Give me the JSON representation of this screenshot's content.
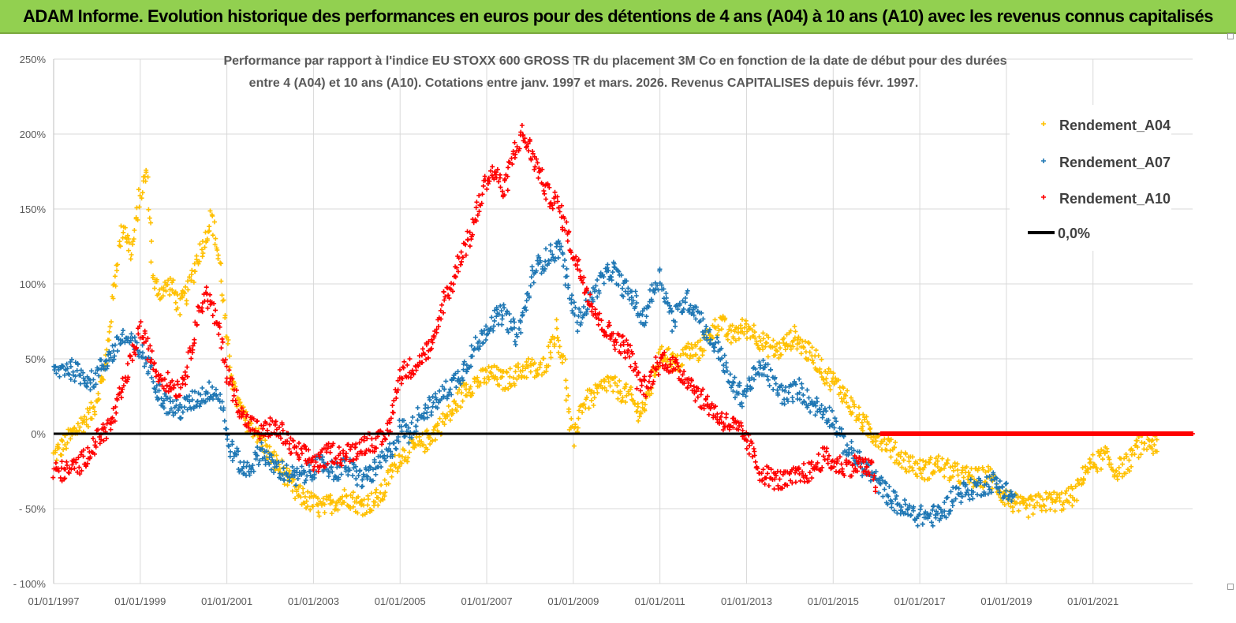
{
  "header": {
    "title": "ADAM Informe. Evolution historique des performances en euros pour des détentions de 4 ans (A04) à 10 ans (A10) avec les revenus connus capitalisés"
  },
  "chart_data": {
    "type": "scatter",
    "title_line1": "Performance par rapport à l'indice EU STOXX 600 GROSS TR  du placement 3M Co en fonction de la date de début pour des durées",
    "title_line2": "entre 4 (A04) et 10 ans (A10). Cotations entre janv. 1997 et mars. 2026. Revenus CAPITALISES depuis févr. 1997.",
    "xlabel": "",
    "ylabel": "",
    "xlim": [
      1997.0,
      2023.3
    ],
    "ylim": [
      -100,
      250
    ],
    "y_ticks": [
      -100,
      -50,
      0,
      50,
      100,
      150,
      200,
      250
    ],
    "y_tick_labels": [
      "- 100%",
      "- 50%",
      "0%",
      "50%",
      "100%",
      "150%",
      "200%",
      "250%"
    ],
    "x_ticks": [
      1997,
      1999,
      2001,
      2003,
      2005,
      2007,
      2009,
      2011,
      2013,
      2015,
      2017,
      2019,
      2021
    ],
    "x_tick_labels": [
      "01/01/1997",
      "01/01/1999",
      "01/01/2001",
      "01/01/2003",
      "01/01/2005",
      "01/01/2007",
      "01/01/2009",
      "01/01/2011",
      "01/01/2013",
      "01/01/2015",
      "01/01/2017",
      "01/01/2019",
      "01/01/2021"
    ],
    "grid": true,
    "legend_position": "top-right",
    "series": [
      {
        "name": "Rendement_A04",
        "color": "#ffc000",
        "marker": "plus",
        "points": [
          [
            1997.0,
            -15
          ],
          [
            1997.3,
            -5
          ],
          [
            1997.6,
            5
          ],
          [
            1997.9,
            15
          ],
          [
            1998.2,
            45
          ],
          [
            1998.4,
            100
          ],
          [
            1998.6,
            140
          ],
          [
            1998.8,
            120
          ],
          [
            1999.0,
            160
          ],
          [
            1999.15,
            175
          ],
          [
            1999.3,
            100
          ],
          [
            1999.5,
            95
          ],
          [
            1999.7,
            100
          ],
          [
            1999.9,
            85
          ],
          [
            2000.1,
            95
          ],
          [
            2000.3,
            115
          ],
          [
            2000.5,
            130
          ],
          [
            2000.65,
            145
          ],
          [
            2000.85,
            110
          ],
          [
            2001.0,
            60
          ],
          [
            2001.2,
            25
          ],
          [
            2001.4,
            10
          ],
          [
            2001.6,
            5
          ],
          [
            2001.8,
            -5
          ],
          [
            2002.0,
            -15
          ],
          [
            2002.3,
            -25
          ],
          [
            2002.6,
            -40
          ],
          [
            2002.9,
            -45
          ],
          [
            2003.2,
            -50
          ],
          [
            2003.5,
            -45
          ],
          [
            2003.8,
            -42
          ],
          [
            2004.1,
            -48
          ],
          [
            2004.4,
            -45
          ],
          [
            2004.6,
            -40
          ],
          [
            2004.8,
            -25
          ],
          [
            2005.0,
            -15
          ],
          [
            2005.3,
            -10
          ],
          [
            2005.6,
            -5
          ],
          [
            2005.9,
            5
          ],
          [
            2006.2,
            15
          ],
          [
            2006.5,
            30
          ],
          [
            2006.8,
            35
          ],
          [
            2007.1,
            40
          ],
          [
            2007.4,
            35
          ],
          [
            2007.7,
            40
          ],
          [
            2008.0,
            45
          ],
          [
            2008.2,
            40
          ],
          [
            2008.4,
            50
          ],
          [
            2008.6,
            70
          ],
          [
            2008.8,
            45
          ],
          [
            2008.9,
            10
          ],
          [
            2009.0,
            -5
          ],
          [
            2009.2,
            20
          ],
          [
            2009.5,
            25
          ],
          [
            2009.8,
            35
          ],
          [
            2010.0,
            30
          ],
          [
            2010.3,
            25
          ],
          [
            2010.5,
            15
          ],
          [
            2010.7,
            20
          ],
          [
            2010.9,
            45
          ],
          [
            2011.1,
            55
          ],
          [
            2011.4,
            45
          ],
          [
            2011.6,
            55
          ],
          [
            2011.9,
            55
          ],
          [
            2012.1,
            65
          ],
          [
            2012.4,
            75
          ],
          [
            2012.6,
            65
          ],
          [
            2012.9,
            70
          ],
          [
            2013.1,
            70
          ],
          [
            2013.4,
            60
          ],
          [
            2013.7,
            55
          ],
          [
            2013.9,
            60
          ],
          [
            2014.1,
            65
          ],
          [
            2014.4,
            55
          ],
          [
            2014.6,
            50
          ],
          [
            2014.8,
            40
          ],
          [
            2015.0,
            35
          ],
          [
            2015.3,
            25
          ],
          [
            2015.6,
            10
          ],
          [
            2015.9,
            0
          ],
          [
            2016.2,
            -5
          ],
          [
            2016.5,
            -15
          ],
          [
            2016.8,
            -20
          ],
          [
            2017.1,
            -25
          ],
          [
            2017.4,
            -20
          ],
          [
            2017.7,
            -25
          ],
          [
            2018.0,
            -28
          ],
          [
            2018.3,
            -30
          ],
          [
            2018.6,
            -28
          ],
          [
            2018.9,
            -40
          ],
          [
            2019.1,
            -45
          ],
          [
            2019.4,
            -50
          ],
          [
            2019.7,
            -47
          ],
          [
            2020.0,
            -45
          ],
          [
            2020.3,
            -45
          ],
          [
            2020.6,
            -40
          ],
          [
            2020.8,
            -25
          ],
          [
            2021.0,
            -20
          ],
          [
            2021.3,
            -15
          ],
          [
            2021.5,
            -25
          ],
          [
            2021.8,
            -20
          ],
          [
            2022.0,
            -10
          ],
          [
            2022.3,
            -5
          ],
          [
            2022.5,
            -10
          ]
        ]
      },
      {
        "name": "Rendement_A07",
        "color": "#1f77b4",
        "marker": "plus",
        "points": [
          [
            1997.0,
            40
          ],
          [
            1997.3,
            45
          ],
          [
            1997.6,
            40
          ],
          [
            1997.9,
            35
          ],
          [
            1998.1,
            45
          ],
          [
            1998.4,
            55
          ],
          [
            1998.6,
            65
          ],
          [
            1998.8,
            60
          ],
          [
            1999.0,
            55
          ],
          [
            1999.2,
            45
          ],
          [
            1999.4,
            30
          ],
          [
            1999.6,
            20
          ],
          [
            1999.9,
            15
          ],
          [
            2000.1,
            20
          ],
          [
            2000.4,
            25
          ],
          [
            2000.7,
            30
          ],
          [
            2000.9,
            20
          ],
          [
            2001.0,
            -5
          ],
          [
            2001.2,
            -15
          ],
          [
            2001.4,
            -25
          ],
          [
            2001.6,
            -20
          ],
          [
            2001.8,
            -10
          ],
          [
            2002.0,
            -20
          ],
          [
            2002.3,
            -25
          ],
          [
            2002.6,
            -30
          ],
          [
            2002.9,
            -25
          ],
          [
            2003.2,
            -20
          ],
          [
            2003.5,
            -25
          ],
          [
            2003.8,
            -22
          ],
          [
            2004.1,
            -30
          ],
          [
            2004.4,
            -25
          ],
          [
            2004.7,
            -15
          ],
          [
            2004.9,
            -5
          ],
          [
            2005.0,
            5
          ],
          [
            2005.2,
            0
          ],
          [
            2005.5,
            15
          ],
          [
            2005.8,
            20
          ],
          [
            2006.1,
            30
          ],
          [
            2006.4,
            40
          ],
          [
            2006.7,
            55
          ],
          [
            2006.9,
            65
          ],
          [
            2007.1,
            75
          ],
          [
            2007.4,
            80
          ],
          [
            2007.7,
            65
          ],
          [
            2007.9,
            85
          ],
          [
            2008.1,
            110
          ],
          [
            2008.3,
            115
          ],
          [
            2008.5,
            120
          ],
          [
            2008.7,
            125
          ],
          [
            2008.9,
            95
          ],
          [
            2009.1,
            75
          ],
          [
            2009.3,
            85
          ],
          [
            2009.6,
            100
          ],
          [
            2009.9,
            110
          ],
          [
            2010.1,
            100
          ],
          [
            2010.4,
            90
          ],
          [
            2010.6,
            75
          ],
          [
            2010.9,
            100
          ],
          [
            2011.0,
            105
          ],
          [
            2011.3,
            75
          ],
          [
            2011.6,
            90
          ],
          [
            2011.9,
            80
          ],
          [
            2012.1,
            65
          ],
          [
            2012.4,
            55
          ],
          [
            2012.6,
            35
          ],
          [
            2012.9,
            25
          ],
          [
            2013.1,
            35
          ],
          [
            2013.4,
            45
          ],
          [
            2013.7,
            30
          ],
          [
            2013.9,
            25
          ],
          [
            2014.2,
            30
          ],
          [
            2014.5,
            20
          ],
          [
            2014.8,
            15
          ],
          [
            2015.0,
            10
          ],
          [
            2015.2,
            -5
          ],
          [
            2015.5,
            -15
          ],
          [
            2015.8,
            -25
          ],
          [
            2016.1,
            -35
          ],
          [
            2016.4,
            -45
          ],
          [
            2016.7,
            -52
          ],
          [
            2017.0,
            -55
          ],
          [
            2017.3,
            -55
          ],
          [
            2017.55,
            -52
          ],
          [
            2017.8,
            -40
          ],
          [
            2018.1,
            -38
          ],
          [
            2018.4,
            -35
          ],
          [
            2018.7,
            -32
          ],
          [
            2019.0,
            -38
          ],
          [
            2019.2,
            -45
          ]
        ]
      },
      {
        "name": "Rendement_A10",
        "color": "#ff0000",
        "marker": "plus",
        "points": [
          [
            1997.0,
            -25
          ],
          [
            1997.3,
            -25
          ],
          [
            1997.6,
            -20
          ],
          [
            1997.9,
            -10
          ],
          [
            1998.1,
            0
          ],
          [
            1998.3,
            5
          ],
          [
            1998.5,
            20
          ],
          [
            1998.7,
            40
          ],
          [
            1998.9,
            60
          ],
          [
            1999.0,
            70
          ],
          [
            1999.2,
            55
          ],
          [
            1999.4,
            40
          ],
          [
            1999.6,
            35
          ],
          [
            1999.9,
            30
          ],
          [
            2000.1,
            45
          ],
          [
            2000.3,
            75
          ],
          [
            2000.5,
            95
          ],
          [
            2000.7,
            80
          ],
          [
            2000.9,
            60
          ],
          [
            2001.0,
            40
          ],
          [
            2001.2,
            25
          ],
          [
            2001.4,
            10
          ],
          [
            2001.6,
            5
          ],
          [
            2001.8,
            0
          ],
          [
            2002.0,
            5
          ],
          [
            2002.3,
            0
          ],
          [
            2002.5,
            -10
          ],
          [
            2002.8,
            -15
          ],
          [
            2003.1,
            -20
          ],
          [
            2003.4,
            -12
          ],
          [
            2003.7,
            -15
          ],
          [
            2004.0,
            -10
          ],
          [
            2004.3,
            -5
          ],
          [
            2004.6,
            -5
          ],
          [
            2004.8,
            10
          ],
          [
            2005.0,
            40
          ],
          [
            2005.3,
            45
          ],
          [
            2005.6,
            55
          ],
          [
            2005.8,
            60
          ],
          [
            2006.0,
            90
          ],
          [
            2006.2,
            100
          ],
          [
            2006.4,
            120
          ],
          [
            2006.6,
            130
          ],
          [
            2006.8,
            150
          ],
          [
            2007.0,
            170
          ],
          [
            2007.2,
            175
          ],
          [
            2007.4,
            160
          ],
          [
            2007.6,
            185
          ],
          [
            2007.8,
            200
          ],
          [
            2008.0,
            190
          ],
          [
            2008.2,
            175
          ],
          [
            2008.4,
            160
          ],
          [
            2008.6,
            155
          ],
          [
            2008.8,
            140
          ],
          [
            2009.0,
            120
          ],
          [
            2009.2,
            105
          ],
          [
            2009.4,
            90
          ],
          [
            2009.6,
            75
          ],
          [
            2009.9,
            65
          ],
          [
            2010.1,
            60
          ],
          [
            2010.3,
            55
          ],
          [
            2010.5,
            35
          ],
          [
            2010.7,
            30
          ],
          [
            2010.9,
            45
          ],
          [
            2011.1,
            50
          ],
          [
            2011.3,
            45
          ],
          [
            2011.5,
            40
          ],
          [
            2011.7,
            35
          ],
          [
            2011.9,
            25
          ],
          [
            2012.1,
            20
          ],
          [
            2012.4,
            10
          ],
          [
            2012.7,
            5
          ],
          [
            2012.9,
            0
          ],
          [
            2013.1,
            -10
          ],
          [
            2013.3,
            -25
          ],
          [
            2013.6,
            -30
          ],
          [
            2013.9,
            -32
          ],
          [
            2014.2,
            -28
          ],
          [
            2014.5,
            -25
          ],
          [
            2014.8,
            -15
          ],
          [
            2015.0,
            -20
          ],
          [
            2015.3,
            -22
          ],
          [
            2015.6,
            -20
          ],
          [
            2015.9,
            -25
          ],
          [
            2016.0,
            -38
          ]
        ]
      }
    ],
    "zero_line": {
      "name": "0,0%",
      "color": "#000000",
      "x_start": 1997.0,
      "x_end": 2023.3,
      "y": 0
    },
    "a10_zero_segment": {
      "color": "#ff0000",
      "x_start": 2016.1,
      "x_end": 2023.3,
      "y": 0
    }
  },
  "legend": {
    "items": [
      {
        "label": "Rendement_A04",
        "color": "#ffc000",
        "marker": "plus"
      },
      {
        "label": "Rendement_A07",
        "color": "#1f77b4",
        "marker": "plus"
      },
      {
        "label": "Rendement_A10",
        "color": "#ff0000",
        "marker": "plus"
      },
      {
        "label": "0,0%",
        "color": "#000000",
        "marker": "line"
      }
    ]
  }
}
